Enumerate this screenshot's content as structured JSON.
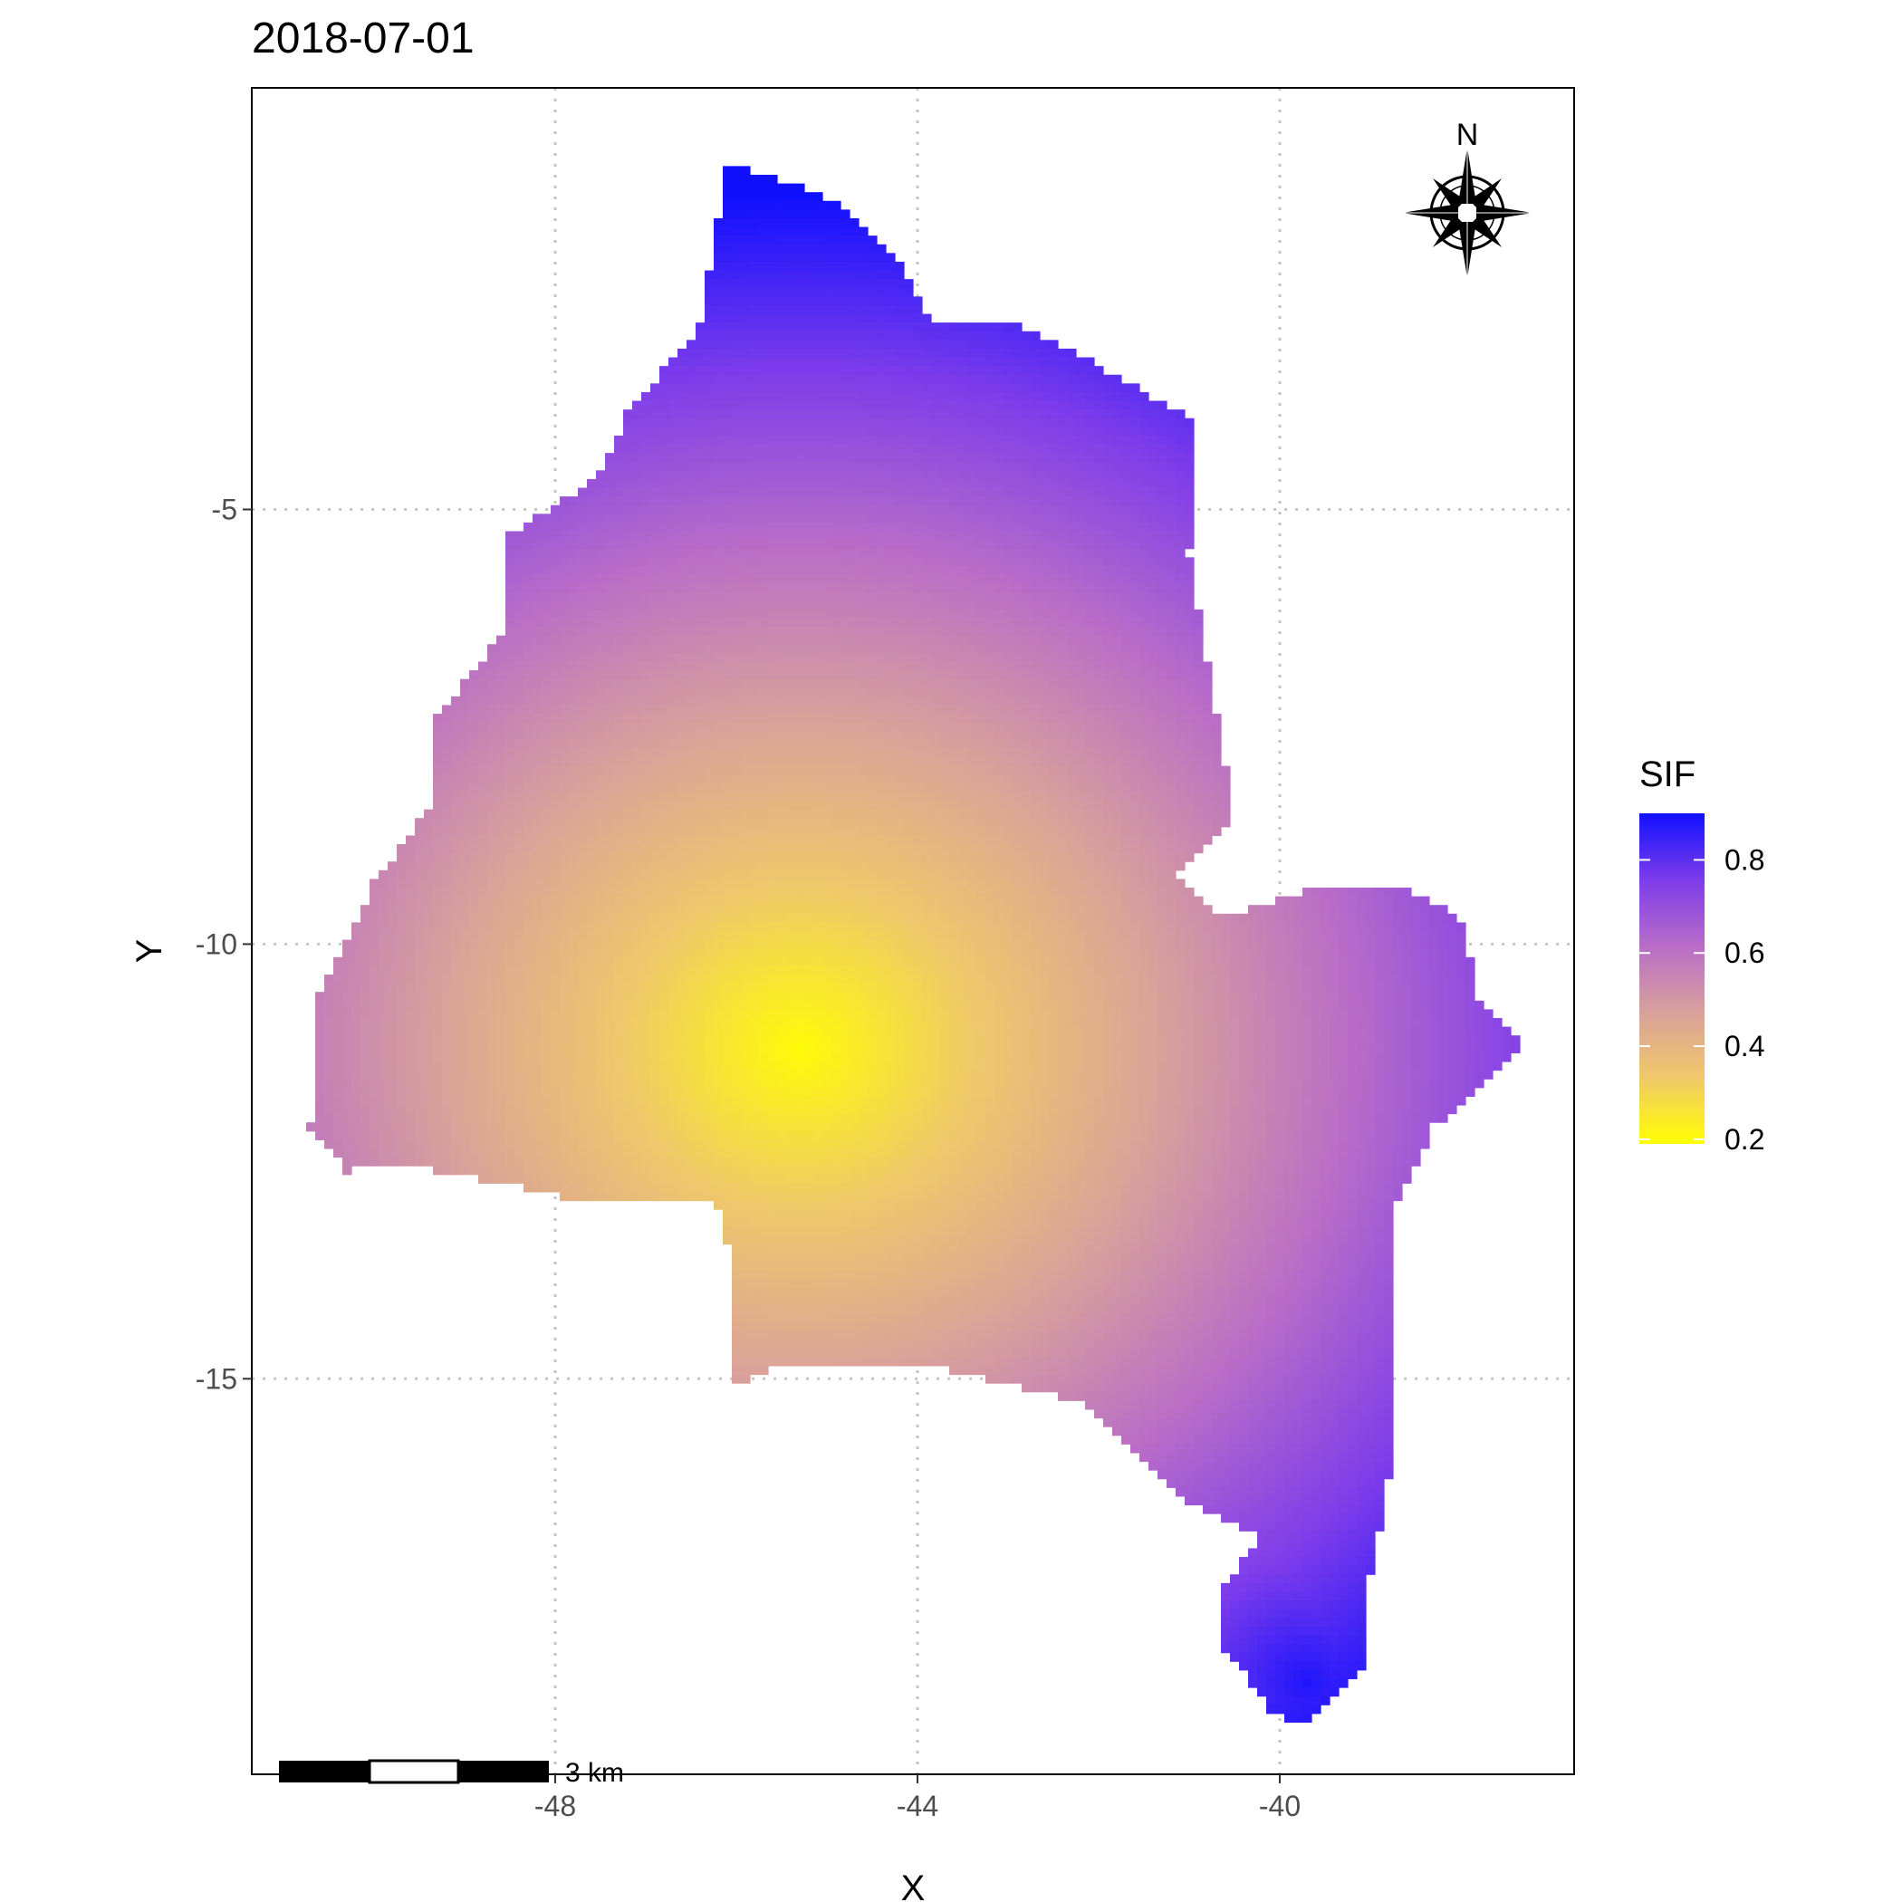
{
  "chart_data": {
    "type": "heatmap",
    "title": "2018-07-01",
    "xlabel": "X",
    "ylabel": "Y",
    "x_ticks": [
      -48,
      -44,
      -40
    ],
    "y_ticks": [
      -5,
      -10,
      -15
    ],
    "xlim": [
      -51.35,
      -36.75
    ],
    "ylim": [
      -19.55,
      -0.15
    ],
    "grid": true,
    "grid_style": "dotted",
    "legend": {
      "title": "SIF",
      "position": "right",
      "ticks": [
        0.8,
        0.6,
        0.4,
        0.2
      ],
      "range": [
        0.19,
        0.9
      ],
      "colors": [
        "#FFFF00",
        "#F0C86A",
        "#D9A09B",
        "#B86CC8",
        "#7D3CEB",
        "#1010FF"
      ]
    },
    "field": {
      "low_center": [
        -45.3,
        -11.2
      ],
      "low_value": 0.2,
      "high_regions": [
        {
          "center": [
            -39.7,
            -18.5
          ],
          "value": 0.88
        },
        {
          "center": [
            -46.5,
            -3.0
          ],
          "value": 0.62
        }
      ]
    },
    "region_outline": [
      [
        -46.1,
        -1.0
      ],
      [
        -45.0,
        -1.4
      ],
      [
        -44.3,
        -2.0
      ],
      [
        -43.8,
        -2.9
      ],
      [
        -43.0,
        -2.8
      ],
      [
        -41.9,
        -3.4
      ],
      [
        -40.9,
        -4.0
      ],
      [
        -41.0,
        -5.5
      ],
      [
        -40.8,
        -6.7
      ],
      [
        -40.5,
        -8.5
      ],
      [
        -41.1,
        -9.2
      ],
      [
        -40.6,
        -9.7
      ],
      [
        -39.4,
        -9.3
      ],
      [
        -38.7,
        -9.3
      ],
      [
        -38.0,
        -9.7
      ],
      [
        -37.8,
        -10.6
      ],
      [
        -37.3,
        -11.2
      ],
      [
        -38.3,
        -12.1
      ],
      [
        -38.7,
        -13.0
      ],
      [
        -38.7,
        -14.5
      ],
      [
        -38.8,
        -16.2
      ],
      [
        -39.0,
        -17.3
      ],
      [
        -39.0,
        -18.3
      ],
      [
        -39.7,
        -19.0
      ],
      [
        -40.1,
        -18.8
      ],
      [
        -40.6,
        -18.1
      ],
      [
        -40.6,
        -17.4
      ],
      [
        -40.2,
        -16.8
      ],
      [
        -41.0,
        -16.4
      ],
      [
        -42.1,
        -15.3
      ],
      [
        -43.2,
        -15.0
      ],
      [
        -44.1,
        -14.8
      ],
      [
        -45.4,
        -14.8
      ],
      [
        -46.0,
        -15.1
      ],
      [
        -46.0,
        -13.9
      ],
      [
        -46.2,
        -13.0
      ],
      [
        -47.9,
        -12.9
      ],
      [
        -48.8,
        -12.7
      ],
      [
        -49.9,
        -12.5
      ],
      [
        -50.3,
        -12.6
      ],
      [
        -50.7,
        -12.1
      ],
      [
        -50.6,
        -10.6
      ],
      [
        -50.0,
        -9.3
      ],
      [
        -49.3,
        -8.3
      ],
      [
        -49.3,
        -7.4
      ],
      [
        -48.5,
        -6.3
      ],
      [
        -48.5,
        -5.3
      ],
      [
        -47.5,
        -4.6
      ],
      [
        -47.2,
        -3.9
      ],
      [
        -46.4,
        -2.9
      ],
      [
        -46.2,
        -1.7
      ]
    ],
    "scale_bar": {
      "label": "3 km"
    },
    "north_arrow": {
      "label": "N"
    }
  }
}
